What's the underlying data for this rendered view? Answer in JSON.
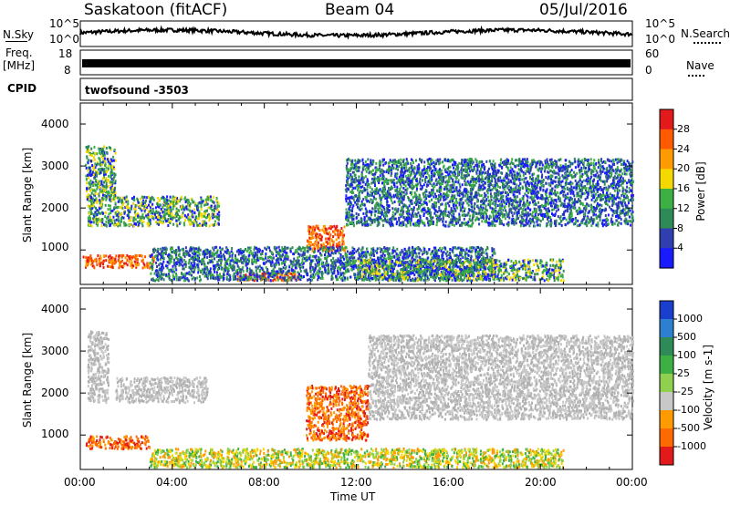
{
  "header": {
    "site_title": "Saskatoon (fitACF)",
    "beam_title": "Beam 04",
    "date": "05/Jul/2016"
  },
  "noise_panel": {
    "left_label": "N.Sky",
    "right_label": "N.Search",
    "left_ticks": [
      "10^5",
      "10^0"
    ],
    "right_ticks": [
      "10^5",
      "10^0"
    ]
  },
  "freq_panel": {
    "left_label": "Freq.",
    "left_unit": "[MHz]",
    "left_ticks": [
      "18",
      "8"
    ],
    "right_label": "Nave",
    "right_ticks": [
      "60",
      "0"
    ]
  },
  "cpid_panel": {
    "label": "CPID",
    "value": "twofsound -3503"
  },
  "chart_data": [
    {
      "type": "heatmap",
      "name": "power",
      "ylabel": "Slant Range [km]",
      "colorbar_label": "Power [dB]",
      "colorbar_ticks": [
        "28",
        "24",
        "20",
        "16",
        "12",
        "8",
        "4"
      ],
      "colorbar_colors": [
        "#e31a1c",
        "#ff5a00",
        "#ff9a00",
        "#f5d800",
        "#3cb043",
        "#2e8b57",
        "#2f3fb0",
        "#1a1aff"
      ],
      "yticks": [
        "4000",
        "3000",
        "2000",
        "1000"
      ],
      "ylim": [
        180,
        4500
      ],
      "xlim": [
        "00:00",
        "24:00"
      ],
      "regions": [
        {
          "t0": 0.1,
          "t1": 3.2,
          "r0": 600,
          "r1": 900,
          "level": "high"
        },
        {
          "t0": 6.8,
          "t1": 9.5,
          "r0": 300,
          "r1": 500,
          "level": "high"
        },
        {
          "t0": 9.8,
          "t1": 11.5,
          "r0": 1000,
          "r1": 1600,
          "level": "high"
        },
        {
          "t0": 0.3,
          "t1": 6.0,
          "r0": 1600,
          "r1": 2300,
          "level": "mid"
        },
        {
          "t0": 0.2,
          "t1": 1.5,
          "r0": 2200,
          "r1": 3500,
          "level": "mid"
        },
        {
          "t0": 11.5,
          "t1": 24.0,
          "r0": 1600,
          "r1": 3200,
          "level": "low"
        },
        {
          "t0": 3.0,
          "t1": 18.0,
          "r0": 300,
          "r1": 1100,
          "level": "low"
        },
        {
          "t0": 12.0,
          "t1": 21.0,
          "r0": 300,
          "r1": 800,
          "level": "mid"
        }
      ]
    },
    {
      "type": "heatmap",
      "name": "velocity",
      "ylabel": "Slant Range [km]",
      "colorbar_label": "Velocity [m s-1]",
      "colorbar_ticks": [
        "1000",
        "500",
        "100",
        "25",
        "-25",
        "-100",
        "-500",
        "-1000"
      ],
      "colorbar_colors": [
        "#1a3fcf",
        "#2e7fd0",
        "#2e8b57",
        "#3cb043",
        "#8fd14f",
        "#c8c8c8",
        "#ff9a00",
        "#ff6a00",
        "#e31a1c"
      ],
      "yticks": [
        "4000",
        "3000",
        "2000",
        "1000"
      ],
      "ylim": [
        180,
        4500
      ],
      "xlabel": "Time UT",
      "xticks": [
        "00:00",
        "04:00",
        "08:00",
        "12:00",
        "16:00",
        "20:00",
        "00:00"
      ],
      "regions": [
        {
          "t0": 9.8,
          "t1": 12.5,
          "r0": 900,
          "r1": 2200,
          "level": "neg"
        },
        {
          "t0": 0.2,
          "t1": 3.0,
          "r0": 700,
          "r1": 1000,
          "level": "neg"
        },
        {
          "t0": 1.5,
          "t1": 5.5,
          "r0": 1800,
          "r1": 2400,
          "level": "zero"
        },
        {
          "t0": 12.5,
          "t1": 24.0,
          "r0": 1400,
          "r1": 3400,
          "level": "zero"
        },
        {
          "t0": 3.0,
          "t1": 21.0,
          "r0": 250,
          "r1": 700,
          "level": "pos"
        },
        {
          "t0": 0.3,
          "t1": 1.2,
          "r0": 1800,
          "r1": 3500,
          "level": "zero"
        }
      ]
    }
  ]
}
